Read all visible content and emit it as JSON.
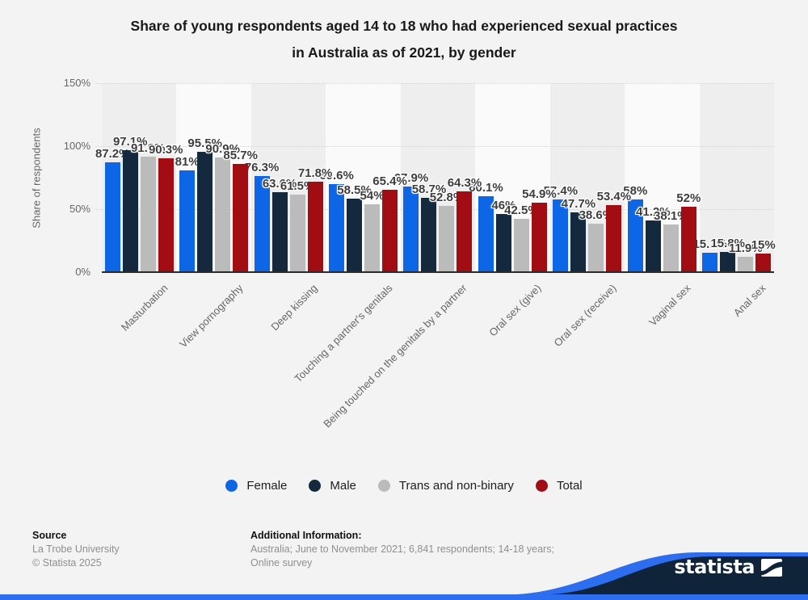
{
  "title": {
    "lines": [
      "Share of young respondents aged 14 to 18 who had experienced sexual practices",
      "in Australia as of 2021, by gender"
    ]
  },
  "chart_data": {
    "type": "bar",
    "title": "Share of young respondents aged 14 to 18 who had experienced sexual practices in Australia as of 2021, by gender",
    "ylabel": "Share of respondents",
    "xlabel": "",
    "ylim": [
      0,
      150
    ],
    "yticks": [
      0,
      50,
      100,
      150
    ],
    "ytick_suffix": "%",
    "grid": "horizontal-dotted",
    "legend_position": "bottom",
    "value_suffix": "%",
    "categories": [
      "Masturbation",
      "View pornography",
      "Deep kissing",
      "Touching a partner's genitals",
      "Being touched on the genitals by a partner",
      "Oral sex (give)",
      "Oral sex (receive)",
      "Vaginal sex",
      "Anal sex"
    ],
    "series": [
      {
        "name": "Female",
        "color": "#0d66e6",
        "values": [
          87.2,
          81,
          76.3,
          69.6,
          67.9,
          60.1,
          57.4,
          58,
          15.1
        ]
      },
      {
        "name": "Male",
        "color": "#14293e",
        "values": [
          97.1,
          95.5,
          63.6,
          58.5,
          58.7,
          46,
          47.7,
          41.2,
          15.8
        ]
      },
      {
        "name": "Trans and non-binary",
        "color": "#bbbbbb",
        "values": [
          91.9,
          90.9,
          61.5,
          54,
          52.8,
          42.5,
          38.6,
          38.1,
          11.9
        ]
      },
      {
        "name": "Total",
        "color": "#a20c13",
        "values": [
          90.3,
          85.7,
          71.8,
          65.4,
          64.3,
          54.9,
          53.4,
          52,
          15
        ]
      }
    ]
  },
  "footer": {
    "source_label": "Source",
    "source_lines": [
      "La Trobe University",
      "© Statista 2025"
    ],
    "additional_label": "Additional Information:",
    "additional_lines": [
      "Australia; June to November 2021; 6,841 respondents; 14-18 years;",
      "Online survey"
    ]
  },
  "branding": {
    "logo_text": "statista",
    "navy": "#0f2438",
    "blue": "#2d6df0"
  }
}
